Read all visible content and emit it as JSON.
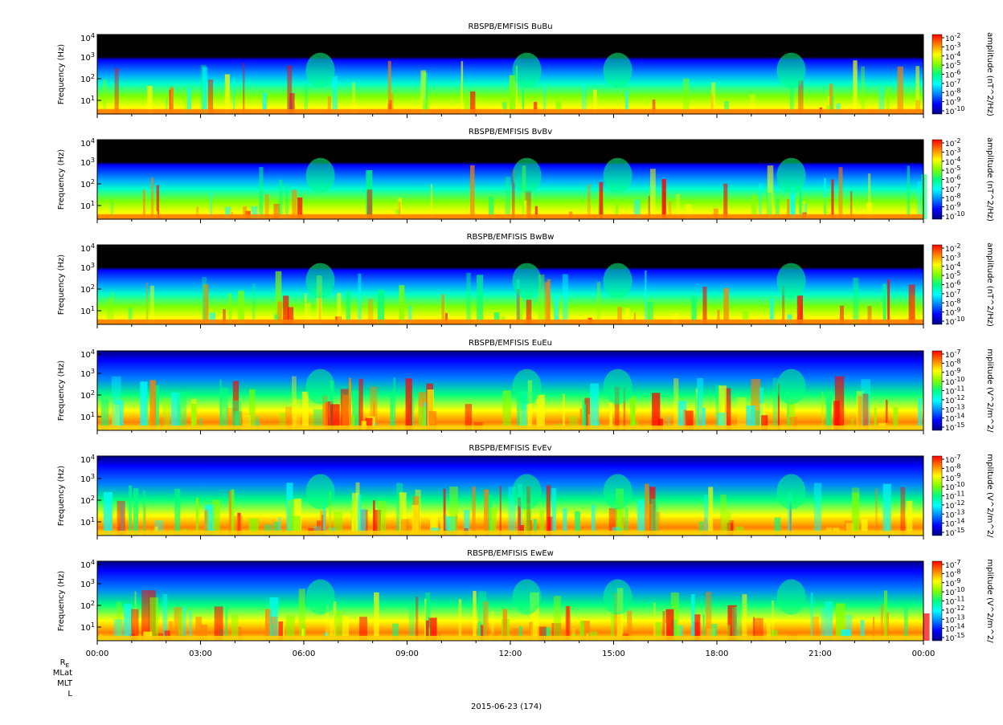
{
  "chart_data": [
    {
      "type": "heatmap",
      "title": "RBSPB/EMFISIS  BuBu",
      "ylabel": "Frequency (Hz)",
      "ytick_labels": [
        "10^1",
        "10^2",
        "10^3",
        "10^4"
      ],
      "colorbar_label": "amplitude (nT^2/Hz)",
      "colorbar_tick_labels": [
        "10^-2",
        "10^-3",
        "10^-4",
        "10^-5",
        "10^-6",
        "10^-7",
        "10^-8",
        "10^-9",
        "10^-10"
      ],
      "zrange_exp": [
        -10,
        -2
      ]
    },
    {
      "type": "heatmap",
      "title": "RBSPB/EMFISIS  BvBv",
      "ylabel": "Frequency (Hz)",
      "ytick_labels": [
        "10^1",
        "10^2",
        "10^3",
        "10^4"
      ],
      "colorbar_label": "amplitude (nT^2/Hz)",
      "colorbar_tick_labels": [
        "10^-2",
        "10^-3",
        "10^-4",
        "10^-5",
        "10^-6",
        "10^-7",
        "10^-8",
        "10^-9",
        "10^-10"
      ],
      "zrange_exp": [
        -10,
        -2
      ]
    },
    {
      "type": "heatmap",
      "title": "RBSPB/EMFISIS  BwBw",
      "ylabel": "Frequency (Hz)",
      "ytick_labels": [
        "10^1",
        "10^2",
        "10^3",
        "10^4"
      ],
      "colorbar_label": "amplitude (nT^2/Hz)",
      "colorbar_tick_labels": [
        "10^-2",
        "10^-3",
        "10^-4",
        "10^-5",
        "10^-6",
        "10^-7",
        "10^-8",
        "10^-9",
        "10^-10"
      ],
      "zrange_exp": [
        -10,
        -2
      ]
    },
    {
      "type": "heatmap",
      "title": "RBSPB/EMFISIS  EuEu",
      "ylabel": "Frequency (Hz)",
      "ytick_labels": [
        "10^1",
        "10^2",
        "10^3",
        "10^4"
      ],
      "colorbar_label": "mplitude (V^2/m^2/",
      "colorbar_tick_labels": [
        "10^-7",
        "10^-8",
        "10^-9",
        "10^-10",
        "10^-11",
        "10^-12",
        "10^-13",
        "10^-14",
        "10^-15"
      ],
      "zrange_exp": [
        -15,
        -7
      ]
    },
    {
      "type": "heatmap",
      "title": "RBSPB/EMFISIS  EvEv",
      "ylabel": "Frequency (Hz)",
      "ytick_labels": [
        "10^1",
        "10^2",
        "10^3",
        "10^4"
      ],
      "colorbar_label": "mplitude (V^2/m^2/",
      "colorbar_tick_labels": [
        "10^-7",
        "10^-8",
        "10^-9",
        "10^-10",
        "10^-11",
        "10^-12",
        "10^-13",
        "10^-14",
        "10^-15"
      ],
      "zrange_exp": [
        -15,
        -7
      ]
    },
    {
      "type": "heatmap",
      "title": "RBSPB/EMFISIS  EwEw",
      "ylabel": "Frequency (Hz)",
      "ytick_labels": [
        "10^1",
        "10^2",
        "10^3",
        "10^4"
      ],
      "colorbar_label": "mplitude (V^2/m^2/",
      "colorbar_tick_labels": [
        "10^-7",
        "10^-8",
        "10^-9",
        "10^-10",
        "10^-11",
        "10^-12",
        "10^-13",
        "10^-14",
        "10^-15"
      ],
      "zrange_exp": [
        -15,
        -7
      ],
      "xtick_labels": [
        "00:00",
        "03:00",
        "06:00",
        "09:00",
        "12:00",
        "15:00",
        "18:00",
        "21:00",
        "00:00"
      ]
    }
  ],
  "footer": {
    "row_labels": [
      "R",
      "MLat",
      "MLT",
      "L"
    ],
    "re_subscript": "E",
    "date": "2015-06-23 (174)"
  },
  "colormap": [
    "#000080",
    "#0000ff",
    "#0080ff",
    "#00ffff",
    "#00ff80",
    "#80ff00",
    "#ffff00",
    "#ff8000",
    "#ff0000"
  ]
}
